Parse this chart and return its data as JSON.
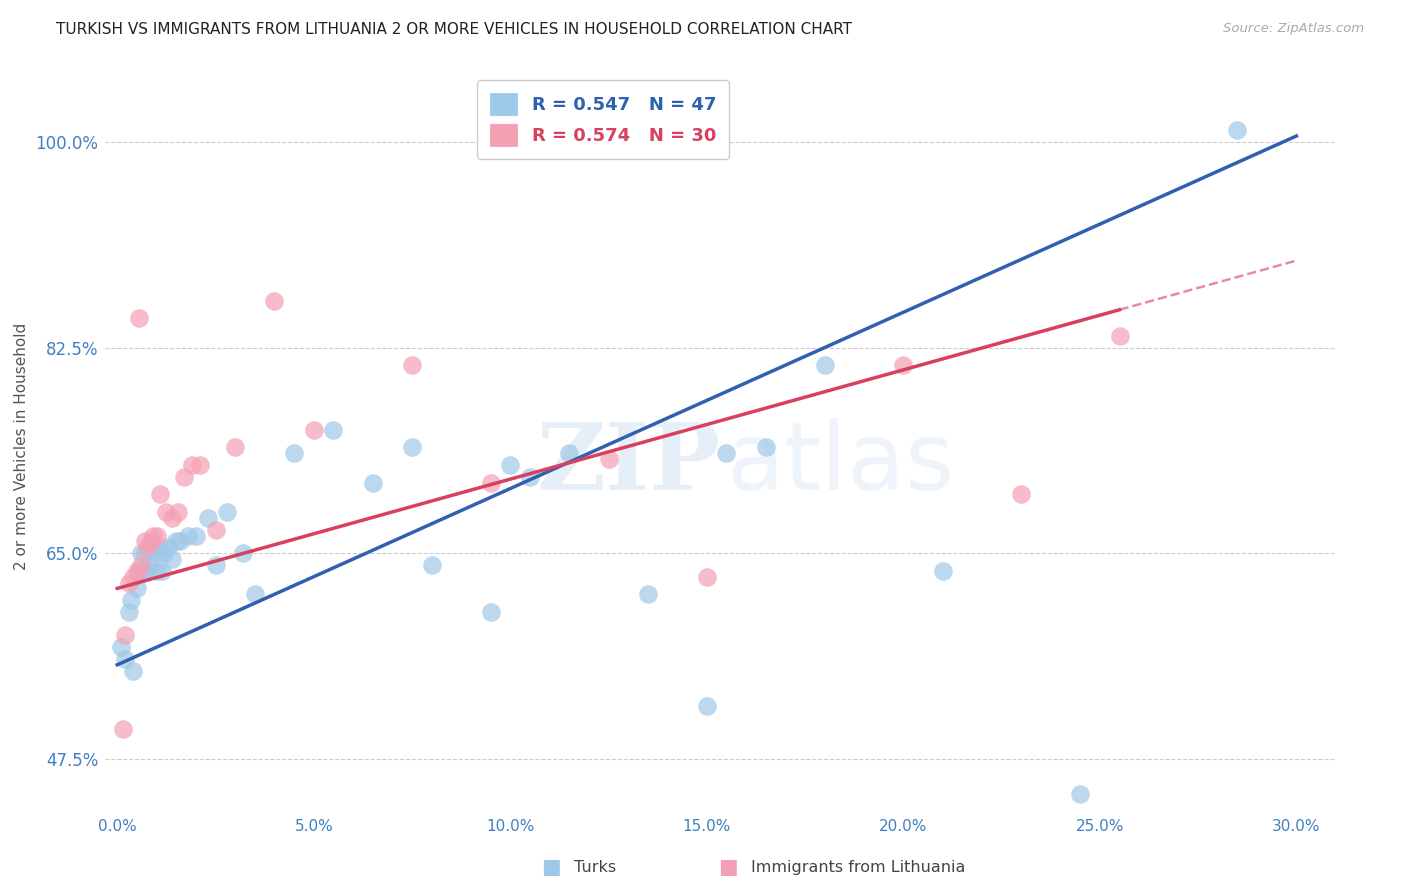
{
  "title": "TURKISH VS IMMIGRANTS FROM LITHUANIA 2 OR MORE VEHICLES IN HOUSEHOLD CORRELATION CHART",
  "source": "Source: ZipAtlas.com",
  "ylabel": "2 or more Vehicles in Household",
  "xlim": [
    -0.3,
    31.0
  ],
  "ylim": [
    43.0,
    106.0
  ],
  "xticks": [
    0.0,
    5.0,
    10.0,
    15.0,
    20.0,
    25.0,
    30.0
  ],
  "ytick_labels": [
    "47.5%",
    "65.0%",
    "82.5%",
    "100.0%"
  ],
  "ytick_values": [
    47.5,
    65.0,
    82.5,
    100.0
  ],
  "r_blue": 0.547,
  "n_blue": 47,
  "r_pink": 0.574,
  "n_pink": 30,
  "blue_color": "#9ec8e8",
  "pink_color": "#f4a0b4",
  "blue_line_color": "#3060b0",
  "pink_line_color": "#d84060",
  "blue_label": "Turks",
  "pink_label": "Immigrants from Lithuania",
  "background_color": "#ffffff",
  "grid_color": "#cccccc",
  "axis_label_color": "#4080c0",
  "blue_line_intercept": 55.5,
  "blue_line_slope": 1.5,
  "pink_line_intercept": 62.0,
  "pink_line_slope": 0.93,
  "pink_line_xmax": 25.5,
  "turks_x": [
    0.1,
    0.2,
    0.3,
    0.35,
    0.4,
    0.5,
    0.55,
    0.6,
    0.65,
    0.7,
    0.75,
    0.8,
    0.85,
    0.9,
    1.0,
    1.05,
    1.1,
    1.15,
    1.2,
    1.3,
    1.4,
    1.5,
    1.6,
    1.8,
    2.0,
    2.3,
    2.5,
    2.8,
    3.2,
    3.5,
    4.5,
    5.5,
    6.5,
    7.5,
    8.0,
    9.5,
    10.0,
    10.5,
    11.5,
    13.5,
    15.0,
    15.5,
    16.5,
    18.0,
    21.0,
    24.5,
    28.5
  ],
  "turks_y": [
    57.0,
    56.0,
    60.0,
    61.0,
    55.0,
    62.0,
    63.5,
    65.0,
    63.5,
    65.0,
    63.5,
    64.0,
    65.5,
    65.0,
    63.5,
    65.5,
    65.0,
    63.5,
    65.0,
    65.5,
    64.5,
    66.0,
    66.0,
    66.5,
    66.5,
    68.0,
    64.0,
    68.5,
    65.0,
    61.5,
    73.5,
    75.5,
    71.0,
    74.0,
    64.0,
    60.0,
    72.5,
    71.5,
    73.5,
    61.5,
    52.0,
    73.5,
    74.0,
    81.0,
    63.5,
    44.5,
    101.0
  ],
  "lith_x": [
    0.15,
    0.3,
    0.4,
    0.5,
    0.6,
    0.7,
    0.75,
    0.85,
    0.9,
    1.0,
    1.1,
    1.25,
    1.4,
    1.55,
    1.7,
    1.9,
    2.1,
    2.5,
    3.0,
    4.0,
    5.0,
    7.5,
    9.5,
    12.5,
    15.0,
    20.0,
    23.0,
    25.5,
    0.2,
    0.55
  ],
  "lith_y": [
    50.0,
    62.5,
    63.0,
    63.5,
    64.0,
    66.0,
    65.5,
    66.0,
    66.5,
    66.5,
    70.0,
    68.5,
    68.0,
    68.5,
    71.5,
    72.5,
    72.5,
    67.0,
    74.0,
    86.5,
    75.5,
    81.0,
    71.0,
    73.0,
    63.0,
    81.0,
    70.0,
    83.5,
    58.0,
    85.0
  ]
}
